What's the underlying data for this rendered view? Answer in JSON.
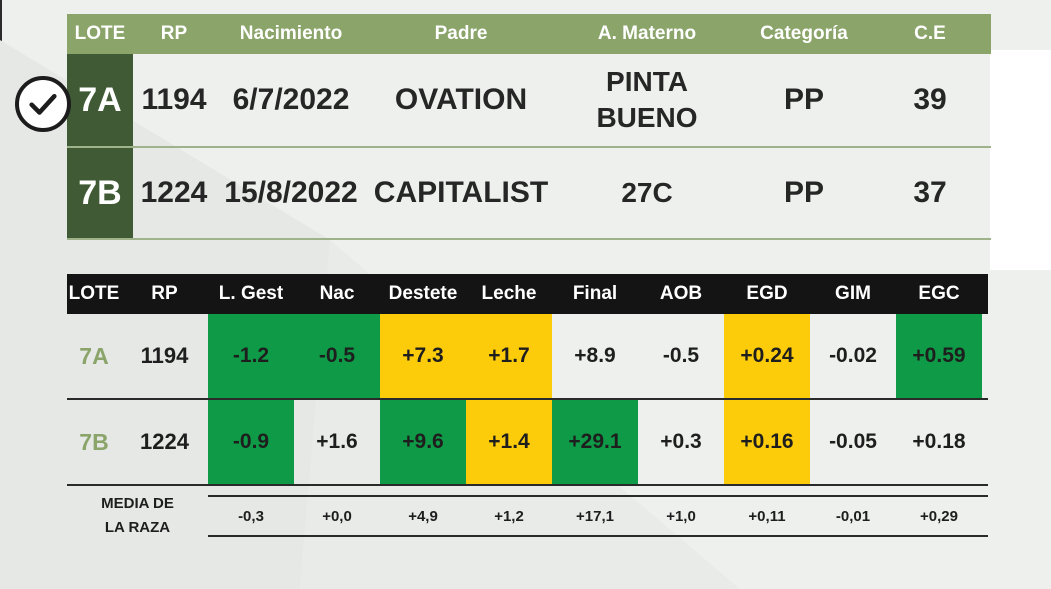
{
  "top_table": {
    "headers": [
      "LOTE",
      "RP",
      "Nacimiento",
      "Padre",
      "A. Materno",
      "Categoría",
      "C.E"
    ],
    "rows": [
      {
        "lote": "7A",
        "rp": "1194",
        "nacimiento": "6/7/2022",
        "padre": "OVATION",
        "materno_line1": "PINTA",
        "materno_line2": "BUENO",
        "categoria": "PP",
        "ce": "39",
        "checked": true
      },
      {
        "lote": "7B",
        "rp": "1224",
        "nacimiento": "15/8/2022",
        "padre": "CAPITALIST",
        "materno_line1": "27C",
        "materno_line2": "",
        "categoria": "PP",
        "ce": "37",
        "checked": false
      }
    ]
  },
  "bottom_table": {
    "headers": [
      "LOTE",
      "RP",
      "L. Gest",
      "Nac",
      "Destete",
      "Leche",
      "Final",
      "AOB",
      "EGD",
      "GIM",
      "EGC"
    ],
    "rows": [
      {
        "lote": "7A",
        "rp": "1194",
        "values": [
          "-1.2",
          "-0.5",
          "+7.3",
          "+1.7",
          "+8.9",
          "-0.5",
          "+0.24",
          "-0.02",
          "+0.59"
        ],
        "highlights": [
          "green",
          "green",
          "yellow",
          "yellow",
          "none",
          "none",
          "yellow",
          "none",
          "green"
        ]
      },
      {
        "lote": "7B",
        "rp": "1224",
        "values": [
          "-0.9",
          "+1.6",
          "+9.6",
          "+1.4",
          "+29.1",
          "+0.3",
          "+0.16",
          "-0.05",
          "+0.18"
        ],
        "highlights": [
          "green",
          "none",
          "green",
          "yellow",
          "green",
          "none",
          "yellow",
          "none",
          "none"
        ]
      }
    ],
    "media": {
      "label_line1": "MEDIA DE",
      "label_line2": "LA RAZA",
      "values": [
        "-0,3",
        "+0,0",
        "+4,9",
        "+1,2",
        "+17,1",
        "+1,0",
        "+0,11",
        "-0,01",
        "+0,29"
      ]
    }
  },
  "colors": {
    "header_green": "#8aa46a",
    "lote_dark_green": "#3f5a35",
    "highlight_green": "#0e9a46",
    "highlight_yellow": "#fccc0a",
    "header_black": "#141414"
  },
  "icons": {
    "check": "check-circle-icon"
  }
}
